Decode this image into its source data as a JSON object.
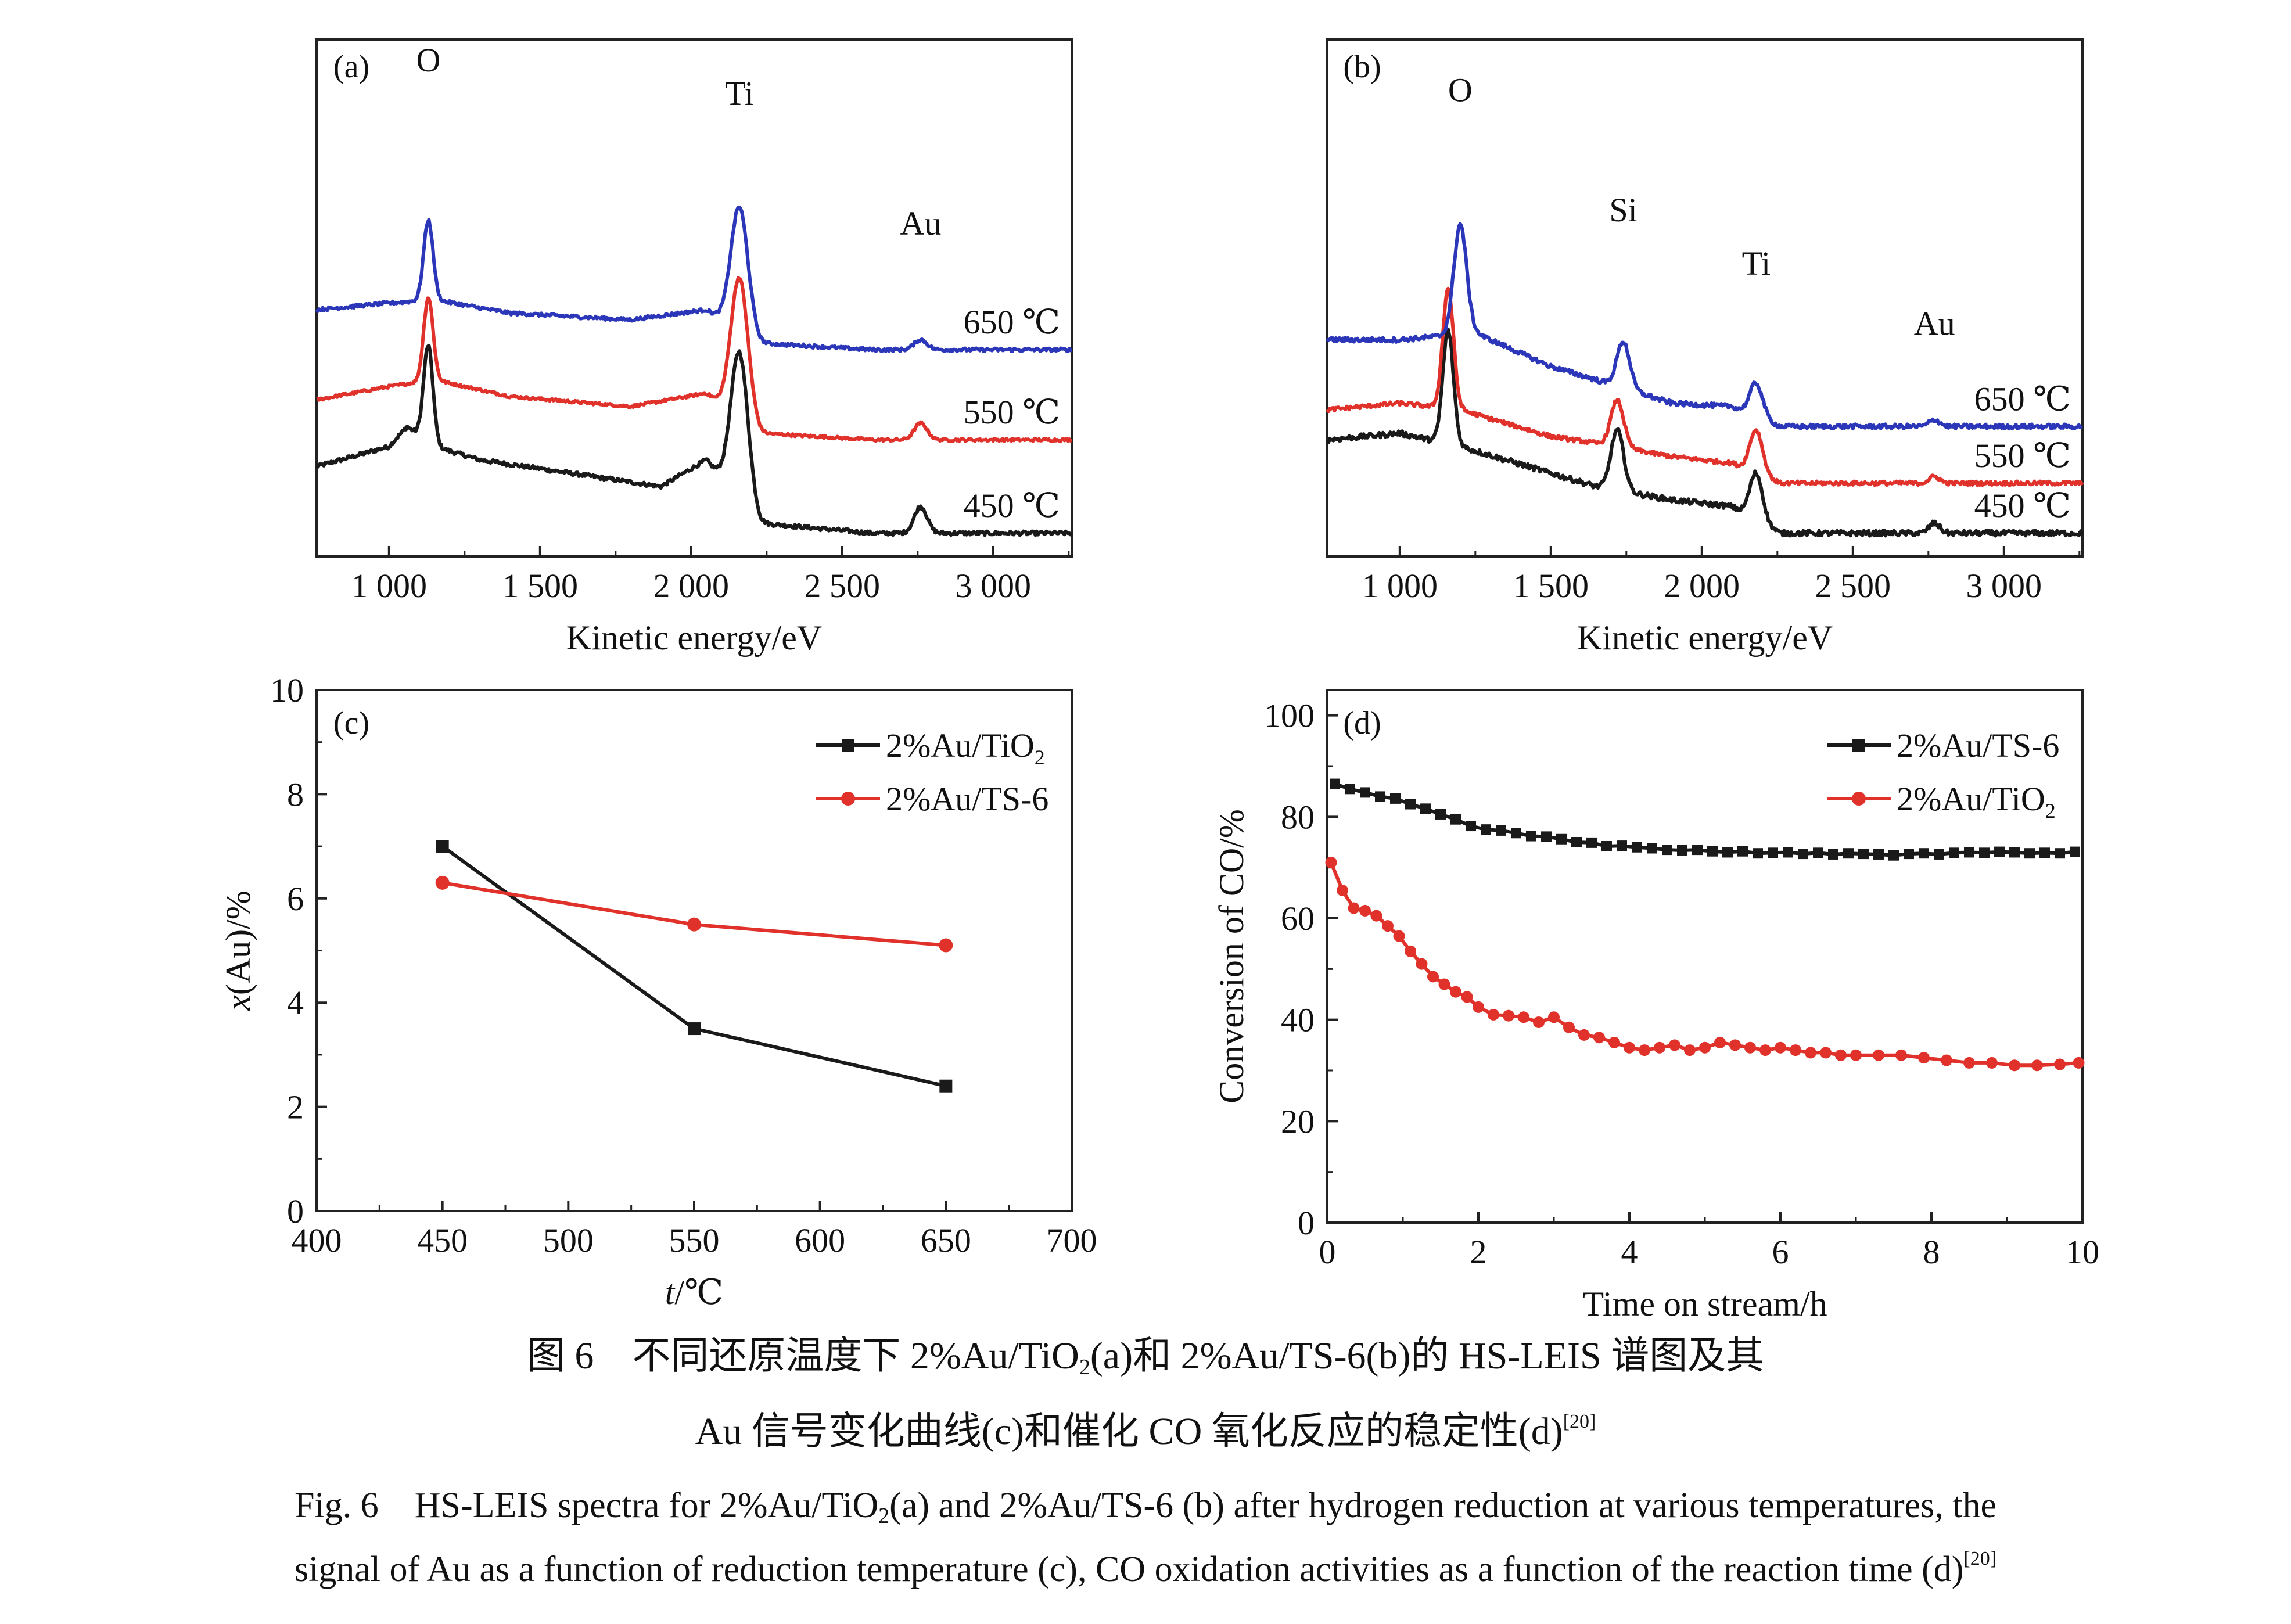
{
  "caption": {
    "cn_line1_a": "图 6　不同还原温度下 2%Au/TiO",
    "cn_line1_sub": "2",
    "cn_line1_b": "(a)和 2%Au/TS-6(b)的 HS-LEIS 谱图及其",
    "cn_line2": "Au 信号变化曲线(c)和催化 CO 氧化反应的稳定性(d)",
    "cn_ref": "[20]",
    "en_line1_a": "Fig. 6　HS-LEIS spectra for 2%Au/TiO",
    "en_line1_sub": "2",
    "en_line1_b": "(a) and 2%Au/TS-6 (b) after hydrogen reduction at various temperatures, the",
    "en_line2": "signal of Au as a function of reduction temperature (c), CO oxidation activities as a function of the reaction time (d)",
    "en_ref": "[20]"
  },
  "colors": {
    "black": "#1a1a1a",
    "red": "#e0312b",
    "blue": "#2b36b8"
  },
  "chart_data": [
    {
      "panel": "(a)",
      "type": "line",
      "xlabel": "Kinetic energy/eV",
      "ylabel": "",
      "xlim": [
        760,
        3260
      ],
      "xticks": [
        1000,
        1500,
        2000,
        2500,
        3000
      ],
      "xtick_labels": [
        "1 000",
        "1 500",
        "2 000",
        "2 500",
        "3 000"
      ],
      "yticks": false,
      "series": [
        {
          "name": "450 ℃",
          "color": "black",
          "baseline": 0.0,
          "noise": 0.006,
          "segments": [
            [
              760,
              0.2
            ],
            [
              1000,
              0.26
            ],
            [
              1060,
              0.32
            ],
            [
              1150,
              0.26
            ],
            [
              1300,
              0.22
            ],
            [
              1600,
              0.18
            ],
            [
              1900,
              0.14
            ],
            [
              2050,
              0.22
            ]
          ],
          "peaks": [
            [
              1130,
              0.29,
              22
            ],
            [
              2160,
              0.44,
              40
            ],
            [
              2760,
              0.08,
              30
            ]
          ],
          "tail": [
            [
              2230,
              0.03
            ],
            [
              2600,
              0.0
            ],
            [
              3260,
              0.0
            ]
          ]
        },
        {
          "name": "550 ℃",
          "color": "red",
          "baseline": 0.28,
          "noise": 0.004,
          "segments": [
            [
              760,
              0.12
            ],
            [
              1000,
              0.16
            ],
            [
              1150,
              0.18
            ],
            [
              1400,
              0.13
            ],
            [
              1800,
              0.1
            ],
            [
              2050,
              0.14
            ]
          ],
          "peaks": [
            [
              1130,
              0.25,
              22
            ],
            [
              2160,
              0.42,
              40
            ],
            [
              2760,
              0.05,
              30
            ]
          ],
          "tail": [
            [
              2230,
              0.02
            ],
            [
              2600,
              0.0
            ],
            [
              3260,
              0.0
            ]
          ]
        },
        {
          "name": "650 ℃",
          "color": "blue",
          "baseline": 0.55,
          "noise": 0.005,
          "segments": [
            [
              760,
              0.12
            ],
            [
              1000,
              0.14
            ],
            [
              1150,
              0.15
            ],
            [
              1400,
              0.11
            ],
            [
              1800,
              0.09
            ],
            [
              2050,
              0.12
            ]
          ],
          "peaks": [
            [
              1130,
              0.24,
              22
            ],
            [
              2160,
              0.37,
              40
            ],
            [
              2760,
              0.03,
              30
            ]
          ],
          "tail": [
            [
              2230,
              0.02
            ],
            [
              2600,
              0.0
            ],
            [
              3260,
              0.0
            ]
          ]
        }
      ],
      "annotations": [
        {
          "text": "O",
          "x": 1130,
          "y": 1.35
        },
        {
          "text": "Ti",
          "x": 2160,
          "y": 1.25
        },
        {
          "text": "Au",
          "x": 2760,
          "y": 0.86
        }
      ]
    },
    {
      "panel": "(b)",
      "type": "line",
      "xlabel": "Kinetic energy/eV",
      "ylabel": "",
      "xlim": [
        760,
        3260
      ],
      "xticks": [
        1000,
        1500,
        2000,
        2500,
        3000
      ],
      "xtick_labels": [
        "1 000",
        "1 500",
        "2 000",
        "2 500",
        "3 000"
      ],
      "yticks": false,
      "series": [
        {
          "name": "450 ℃",
          "color": "black",
          "baseline": 0.0,
          "noise": 0.008,
          "segments": [
            [
              760,
              0.28
            ],
            [
              1000,
              0.3
            ],
            [
              1200,
              0.26
            ],
            [
              1500,
              0.18
            ],
            [
              1650,
              0.14
            ],
            [
              1900,
              0.1
            ],
            [
              2100,
              0.08
            ]
          ],
          "peaks": [
            [
              1160,
              0.34,
              25
            ],
            [
              1720,
              0.18,
              30
            ],
            [
              2180,
              0.14,
              30
            ],
            [
              2770,
              0.03,
              25
            ]
          ],
          "tail": [
            [
              2260,
              0.0
            ],
            [
              3260,
              0.0
            ]
          ]
        },
        {
          "name": "550 ℃",
          "color": "red",
          "baseline": 0.15,
          "noise": 0.006,
          "segments": [
            [
              760,
              0.22
            ],
            [
              1000,
              0.24
            ],
            [
              1200,
              0.22
            ],
            [
              1500,
              0.14
            ],
            [
              1650,
              0.12
            ],
            [
              1900,
              0.08
            ],
            [
              2100,
              0.06
            ]
          ],
          "peaks": [
            [
              1160,
              0.36,
              25
            ],
            [
              1720,
              0.14,
              30
            ],
            [
              2180,
              0.13,
              30
            ],
            [
              2770,
              0.02,
              25
            ]
          ],
          "tail": [
            [
              2260,
              0.0
            ],
            [
              3260,
              0.0
            ]
          ]
        },
        {
          "name": "650 ℃",
          "color": "blue",
          "baseline": 0.32,
          "noise": 0.007,
          "segments": [
            [
              760,
              0.26
            ],
            [
              1000,
              0.26
            ],
            [
              1250,
              0.28
            ],
            [
              1500,
              0.18
            ],
            [
              1650,
              0.14
            ],
            [
              1900,
              0.07
            ],
            [
              2100,
              0.06
            ]
          ],
          "peaks": [
            [
              1200,
              0.33,
              30
            ],
            [
              1740,
              0.14,
              30
            ],
            [
              2180,
              0.1,
              30
            ],
            [
              2770,
              0.02,
              25
            ]
          ],
          "tail": [
            [
              2260,
              0.0
            ],
            [
              3260,
              0.0
            ]
          ]
        }
      ],
      "annotations": [
        {
          "text": "O",
          "x": 1200,
          "y": 1.26
        },
        {
          "text": "Si",
          "x": 1740,
          "y": 0.9
        },
        {
          "text": "Ti",
          "x": 2180,
          "y": 0.74
        },
        {
          "text": "Au",
          "x": 2770,
          "y": 0.56
        }
      ]
    },
    {
      "panel": "(c)",
      "type": "line",
      "xlabel": "t/℃",
      "ylabel": "x(Au)/%",
      "xlim": [
        400,
        700
      ],
      "ylim": [
        0,
        10
      ],
      "xticks": [
        400,
        450,
        500,
        550,
        600,
        650,
        700
      ],
      "yticks": [
        0,
        2,
        4,
        6,
        8,
        10
      ],
      "x": [
        450,
        550,
        650
      ],
      "series": [
        {
          "name": "2%Au/TiO2",
          "color": "black",
          "marker": "square",
          "values": [
            7.0,
            3.5,
            2.4
          ]
        },
        {
          "name": "2%Au/TS-6",
          "color": "red",
          "marker": "circle",
          "values": [
            6.3,
            5.5,
            5.1
          ]
        }
      ],
      "legend": "top-right"
    },
    {
      "panel": "(d)",
      "type": "line",
      "xlabel": "Time on stream/h",
      "ylabel": "Conversion of CO/%",
      "xlim": [
        0,
        10
      ],
      "ylim": [
        0,
        105
      ],
      "xticks": [
        0,
        2,
        4,
        6,
        8,
        10
      ],
      "yticks": [
        0,
        20,
        40,
        60,
        80,
        100
      ],
      "series": [
        {
          "name": "2%Au/TS-6",
          "color": "black",
          "marker": "square",
          "x": [
            0.1,
            0.3,
            0.5,
            0.7,
            0.9,
            1.1,
            1.3,
            1.5,
            1.7,
            1.9,
            2.1,
            2.3,
            2.5,
            2.7,
            2.9,
            3.1,
            3.3,
            3.5,
            3.7,
            3.9,
            4.1,
            4.3,
            4.5,
            4.7,
            4.9,
            5.1,
            5.3,
            5.5,
            5.7,
            5.9,
            6.1,
            6.3,
            6.5,
            6.7,
            6.9,
            7.1,
            7.3,
            7.5,
            7.7,
            7.9,
            8.1,
            8.3,
            8.5,
            8.7,
            8.9,
            9.1,
            9.3,
            9.5,
            9.7,
            9.9
          ],
          "values": [
            86.5,
            85.5,
            84.8,
            84.0,
            83.6,
            82.5,
            81.6,
            80.5,
            79.5,
            78.2,
            77.5,
            77.3,
            76.8,
            76.2,
            76.1,
            75.6,
            75.0,
            74.9,
            74.2,
            74.3,
            74.0,
            73.8,
            73.5,
            73.4,
            73.5,
            73.2,
            73.0,
            73.2,
            72.8,
            72.9,
            73.0,
            72.7,
            72.9,
            72.6,
            72.8,
            72.7,
            72.6,
            72.4,
            72.7,
            72.8,
            72.6,
            72.9,
            73.0,
            72.9,
            73.1,
            73.0,
            72.8,
            72.9,
            72.8,
            73.1
          ]
        },
        {
          "name": "2%Au/TiO2",
          "color": "red",
          "marker": "circle",
          "x": [
            0.05,
            0.2,
            0.35,
            0.5,
            0.65,
            0.8,
            0.95,
            1.1,
            1.25,
            1.4,
            1.55,
            1.7,
            1.85,
            2.0,
            2.2,
            2.4,
            2.6,
            2.8,
            3.0,
            3.2,
            3.4,
            3.6,
            3.8,
            4.0,
            4.2,
            4.4,
            4.6,
            4.8,
            5.0,
            5.2,
            5.4,
            5.6,
            5.8,
            6.0,
            6.2,
            6.4,
            6.6,
            6.8,
            7.0,
            7.3,
            7.6,
            7.9,
            8.2,
            8.5,
            8.8,
            9.1,
            9.4,
            9.7,
            9.95
          ],
          "values": [
            71.0,
            65.5,
            62.0,
            61.5,
            60.5,
            58.5,
            56.5,
            53.5,
            51.0,
            48.5,
            47.0,
            45.5,
            44.5,
            42.5,
            41.0,
            40.8,
            40.5,
            39.5,
            40.5,
            38.5,
            37.0,
            36.5,
            35.5,
            34.5,
            34.0,
            34.5,
            35.0,
            34.0,
            34.5,
            35.5,
            35.0,
            34.5,
            34.0,
            34.5,
            34.0,
            33.5,
            33.5,
            33.0,
            33.0,
            33.0,
            33.0,
            32.5,
            32.0,
            31.5,
            31.5,
            31.0,
            31.0,
            31.2,
            31.5
          ]
        }
      ],
      "legend": "top-right"
    }
  ]
}
